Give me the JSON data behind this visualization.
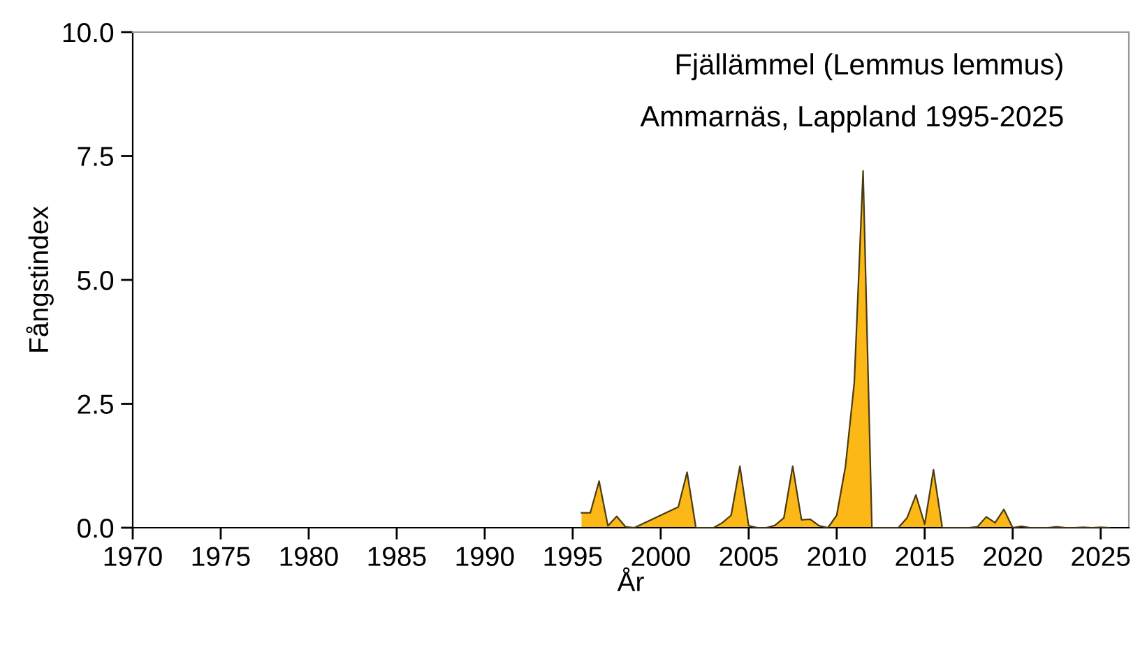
{
  "chart_data": {
    "type": "area",
    "annotations": [
      "Fjällämmel (Lemmus lemmus)",
      "Ammarnäs, Lappland 1995-2025"
    ],
    "xlabel": "År",
    "ylabel": "Fångstindex",
    "series": [
      {
        "color": "#fbb817",
        "x": [
          1995.5,
          1996.0,
          1996.5,
          1997.0,
          1997.5,
          1998.0,
          1998.5,
          2001.0,
          2001.5,
          2002.0,
          2002.5,
          2003.0,
          2003.5,
          2004.0,
          2004.5,
          2005.0,
          2005.5,
          2006.0,
          2006.5,
          2007.0,
          2007.5,
          2008.0,
          2008.5,
          2009.0,
          2009.5,
          2010.0,
          2010.5,
          2011.0,
          2011.5,
          2012.0,
          2012.5,
          2013.0,
          2013.5,
          2014.0,
          2014.5,
          2015.0,
          2015.5,
          2016.0,
          2016.5,
          2017.0,
          2017.5,
          2018.0,
          2018.5,
          2019.0,
          2019.5,
          2020.0,
          2020.5,
          2021.0,
          2021.5,
          2022.0,
          2022.5,
          2023.0,
          2023.5,
          2024.0,
          2024.5,
          2025.0,
          2025.5
        ],
        "values": [
          0.3,
          0.3,
          0.94,
          0.04,
          0.23,
          0.02,
          0.0,
          0.42,
          1.12,
          0.0,
          0.0,
          0.0,
          0.1,
          0.25,
          1.24,
          0.04,
          0.0,
          0.0,
          0.05,
          0.2,
          1.24,
          0.16,
          0.17,
          0.04,
          0.0,
          0.25,
          1.24,
          2.93,
          7.2,
          0.0,
          0.0,
          0.0,
          0.0,
          0.2,
          0.66,
          0.07,
          1.17,
          0.0,
          0.0,
          0.0,
          0.0,
          0.02,
          0.22,
          0.1,
          0.37,
          0.0,
          0.03,
          0.0,
          0.0,
          0.0,
          0.02,
          0.0,
          0.0,
          0.01,
          0.0,
          0.01,
          0.0
        ]
      }
    ],
    "xlim": [
      1970,
      2026.6
    ],
    "ylim": [
      0,
      10
    ],
    "xticks": [
      1970,
      1975,
      1980,
      1985,
      1990,
      1995,
      2000,
      2005,
      2010,
      2015,
      2020,
      2025
    ],
    "yticks": [
      {
        "value": 0,
        "label": "0.0"
      },
      {
        "value": 2.5,
        "label": "2.5"
      },
      {
        "value": 5,
        "label": "5.0"
      },
      {
        "value": 7.5,
        "label": "7.5"
      },
      {
        "value": 10,
        "label": "10.0"
      }
    ],
    "grid": false,
    "legend": false
  }
}
